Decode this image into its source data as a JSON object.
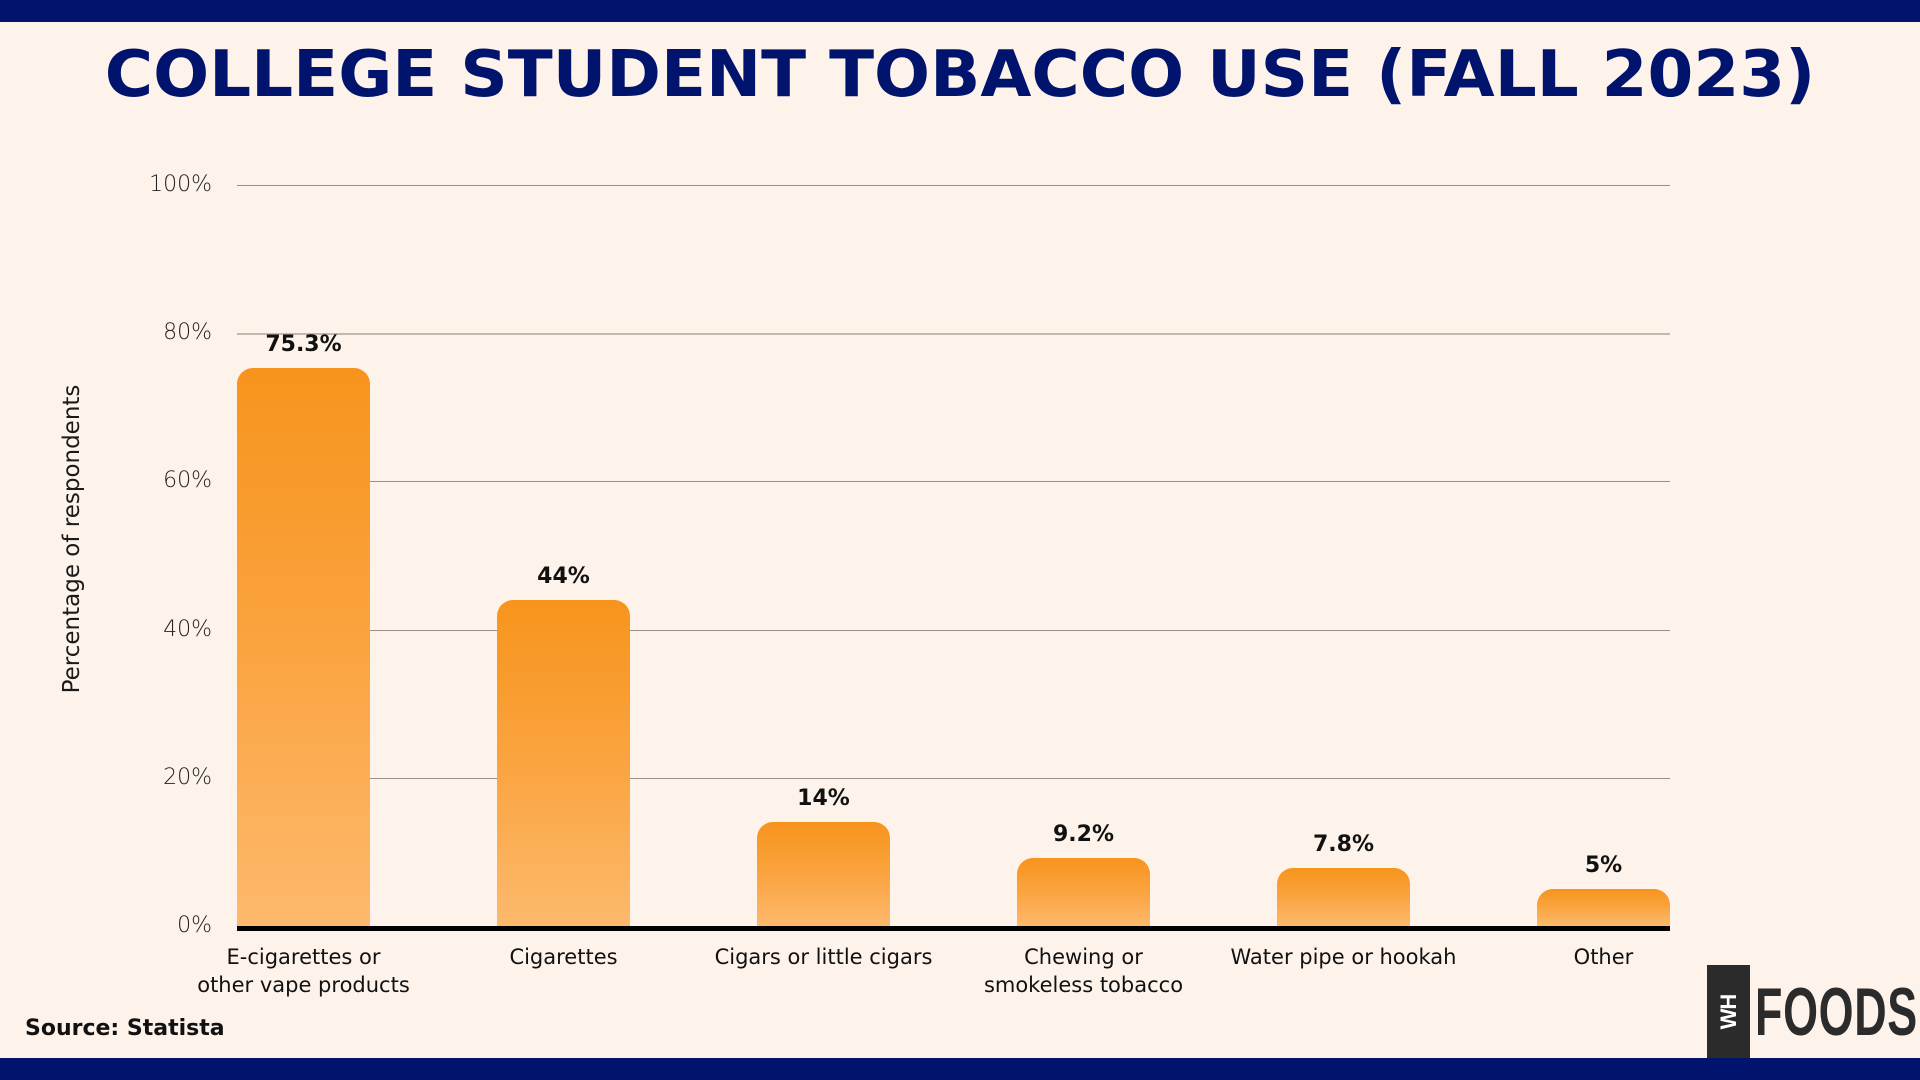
{
  "title": "COLLEGE STUDENT TOBACCO USE (FALL 2023)",
  "source": "Source: Statista",
  "logo": {
    "mark": "WH",
    "word": "FOODS"
  },
  "colors": {
    "navy": "#00146E",
    "background": "#FDF3EB",
    "bar_top": "#F7941D",
    "bar_bottom": "#FDB96C",
    "logo": "#2B2B2B"
  },
  "yaxis": {
    "label": "Percentage of respondents",
    "ticks": [
      "0%",
      "20%",
      "40%",
      "60%",
      "80%",
      "100%"
    ]
  },
  "bars": [
    {
      "label_lines": [
        "E-cigarettes or",
        "other vape products"
      ],
      "value": 75.3,
      "value_label": "75.3%"
    },
    {
      "label_lines": [
        "Cigarettes"
      ],
      "value": 44,
      "value_label": "44%"
    },
    {
      "label_lines": [
        "Cigars or little cigars"
      ],
      "value": 14,
      "value_label": "14%"
    },
    {
      "label_lines": [
        "Chewing or",
        "smokeless tobacco"
      ],
      "value": 9.2,
      "value_label": "9.2%"
    },
    {
      "label_lines": [
        "Water pipe or hookah"
      ],
      "value": 7.8,
      "value_label": "7.8%"
    },
    {
      "label_lines": [
        "Other"
      ],
      "value": 5,
      "value_label": "5%"
    }
  ],
  "chart_data": {
    "type": "bar",
    "title": "COLLEGE STUDENT TOBACCO USE (FALL 2023)",
    "categories": [
      "E-cigarettes or other vape products",
      "Cigarettes",
      "Cigars or little cigars",
      "Chewing or smokeless tobacco",
      "Water pipe or hookah",
      "Other"
    ],
    "values": [
      75.3,
      44,
      14,
      9.2,
      7.8,
      5
    ],
    "data_labels": [
      "75.3%",
      "44%",
      "14%",
      "9.2%",
      "7.8%",
      "5%"
    ],
    "xlabel": "",
    "ylabel": "Percentage of respondents",
    "ylim": [
      0,
      100
    ],
    "yticks": [
      0,
      20,
      40,
      60,
      80,
      100
    ],
    "ytick_labels": [
      "0%",
      "20%",
      "40%",
      "60%",
      "80%",
      "100%"
    ],
    "grid": true,
    "legend": null,
    "annotations": [
      "Source: Statista"
    ]
  }
}
